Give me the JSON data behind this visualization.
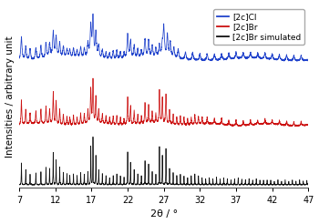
{
  "title": "",
  "xlabel": "2θ / °",
  "ylabel": "Intensities / arbitrary unit",
  "xlim": [
    7,
    47
  ],
  "xticks": [
    7,
    12,
    17,
    22,
    27,
    32,
    37,
    42,
    47
  ],
  "legend_labels": [
    "[2c]Cl",
    "[2c]Br",
    "[2c]Br simulated"
  ],
  "legend_colors": [
    "#2244cc",
    "#cc1111",
    "#111111"
  ],
  "line_colors": [
    "#2244cc",
    "#cc1111",
    "#111111"
  ],
  "offsets": [
    1.85,
    0.88,
    0.0
  ],
  "seed": 42,
  "background_color": "#ffffff",
  "figsize": [
    3.5,
    2.46
  ],
  "dpi": 100
}
